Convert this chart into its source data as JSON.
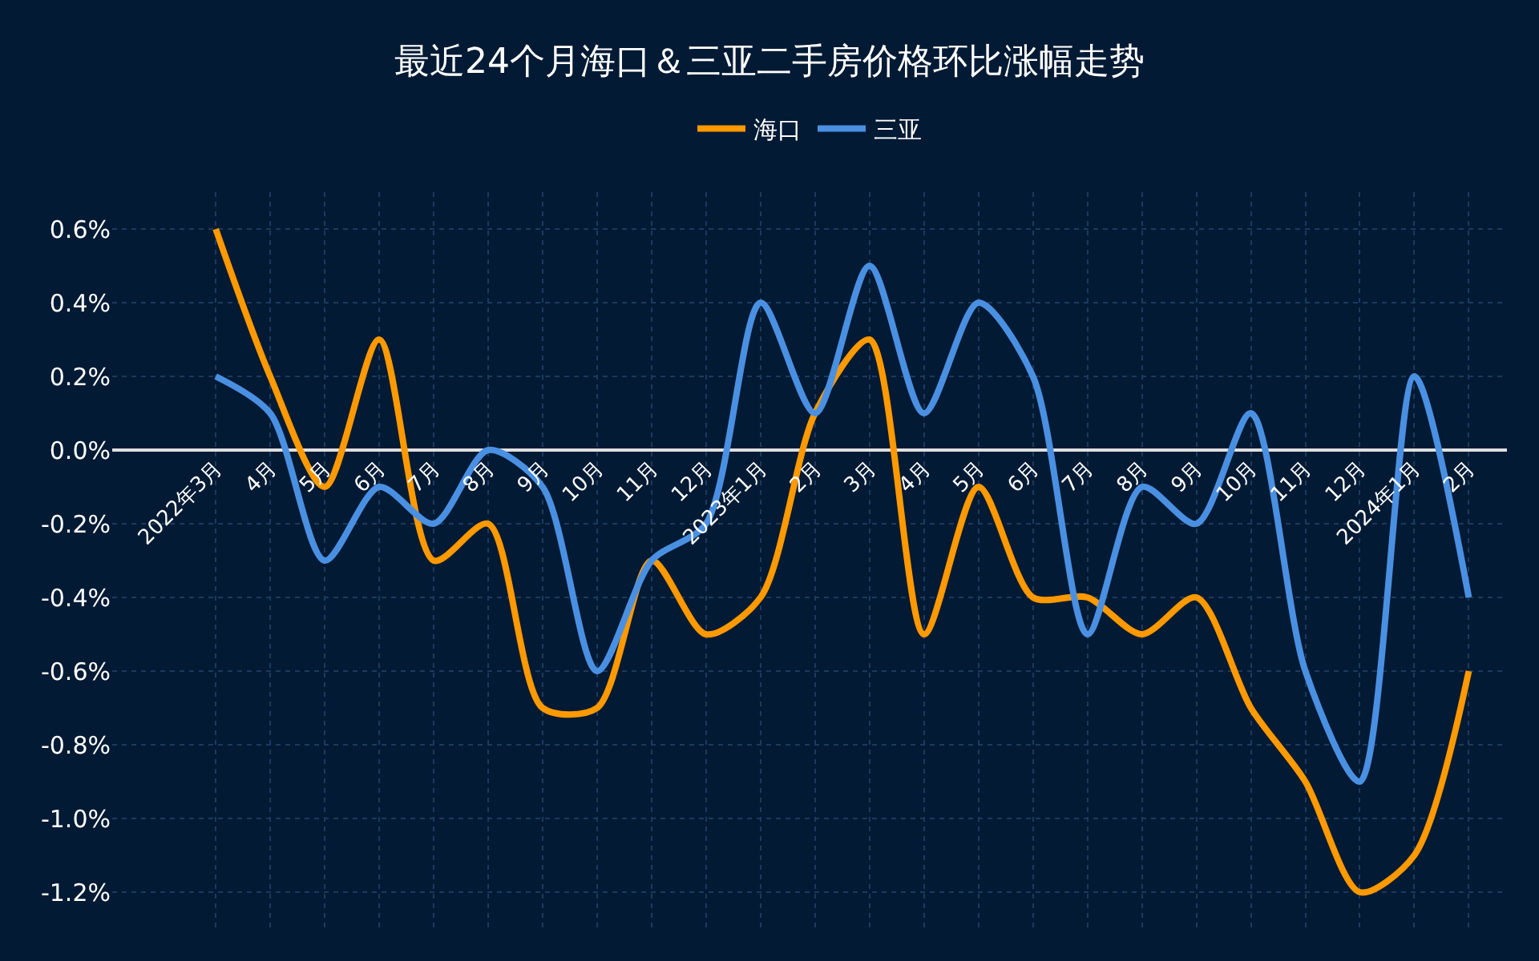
{
  "chart_data": {
    "type": "line",
    "title": "最近24个月海口＆三亚二手房价格环比涨幅走势",
    "categories": [
      "2022年3月",
      "4月",
      "5月",
      "6月",
      "7月",
      "8月",
      "9月",
      "10月",
      "11月",
      "12月",
      "2023年1月",
      "2月",
      "3月",
      "4月",
      "5月",
      "6月",
      "7月",
      "8月",
      "9月",
      "10月",
      "11月",
      "12月",
      "2024年1月",
      "2月"
    ],
    "series": [
      {
        "name": "海口",
        "color": "#ff9900",
        "values": [
          0.6,
          0.2,
          -0.1,
          0.3,
          -0.3,
          -0.2,
          -0.7,
          -0.7,
          -0.3,
          -0.5,
          -0.4,
          0.1,
          0.3,
          -0.5,
          -0.1,
          -0.4,
          -0.4,
          -0.5,
          -0.4,
          -0.7,
          -0.9,
          -1.2,
          -1.1,
          -0.6
        ]
      },
      {
        "name": "三亚",
        "color": "#4a90e2",
        "values": [
          0.2,
          0.1,
          -0.3,
          -0.1,
          -0.2,
          0.0,
          -0.1,
          -0.6,
          -0.3,
          -0.2,
          0.4,
          0.1,
          0.5,
          0.1,
          0.4,
          0.2,
          -0.5,
          -0.1,
          -0.2,
          0.1,
          -0.6,
          -0.9,
          0.2,
          -0.4
        ]
      }
    ],
    "ylim": [
      -1.3,
      0.7
    ],
    "yticks": [
      {
        "value": -1.2,
        "label": "-1.2%"
      },
      {
        "value": -1.0,
        "label": "-1.0%"
      },
      {
        "value": -0.8,
        "label": "-0.8%"
      },
      {
        "value": -0.6,
        "label": "-0.6%"
      },
      {
        "value": -0.4,
        "label": "-0.4%"
      },
      {
        "value": -0.2,
        "label": "-0.2%"
      },
      {
        "value": 0.0,
        "label": "0.0%"
      },
      {
        "value": 0.2,
        "label": "0.2%"
      },
      {
        "value": 0.4,
        "label": "0.4%"
      },
      {
        "value": 0.6,
        "label": "0.6%"
      }
    ],
    "grid": true,
    "legend": "top",
    "marker": "none",
    "line_style": "solid"
  }
}
